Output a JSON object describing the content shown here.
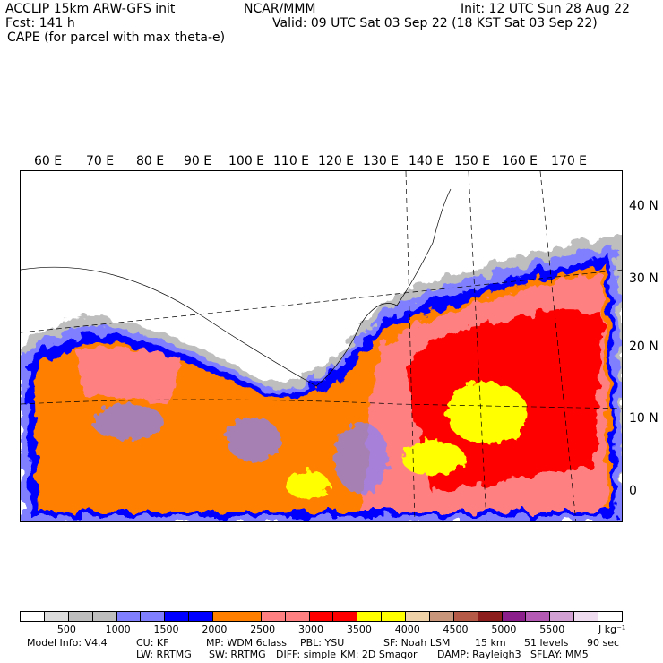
{
  "header": {
    "model": "ACCLIP 15km ARW-GFS init",
    "org": "NCAR/MMM",
    "init": "Init: 12 UTC Sun 28 Aug 22",
    "fcst": "Fcst:  141 h",
    "valid": "Valid: 09 UTC Sat 03 Sep 22 (18 KST Sat 03 Sep 22)",
    "field": "CAPE (for parcel with max theta-e)"
  },
  "map": {
    "lon_labels": [
      "60 E",
      "70 E",
      "80 E",
      "90 E",
      "100 E",
      "110 E",
      "120 E",
      "130 E",
      "140 E",
      "150 E",
      "160 E",
      "170 E"
    ],
    "lat_labels": [
      "40 N",
      "30 N",
      "20 N",
      "10 N",
      "0"
    ]
  },
  "colorbar": {
    "colors": [
      "#ffffff",
      "#dcdcdc",
      "#bebebe",
      "#bebebe",
      "#8080ff",
      "#8080ff",
      "#0000ff",
      "#0000ff",
      "#ff8000",
      "#ff8000",
      "#ff8080",
      "#ff8080",
      "#ff0000",
      "#ff0000",
      "#ffff00",
      "#ffff00",
      "#f0d2a8",
      "#c8967a",
      "#b45a46",
      "#8c1e1e",
      "#8c1e8c",
      "#b45ab4",
      "#d2a0d2",
      "#f0dcf0",
      "#ffffff"
    ],
    "labels": [
      "500",
      "1000",
      "1500",
      "2000",
      "2500",
      "3000",
      "3500",
      "4000",
      "4500",
      "5000",
      "5500"
    ],
    "units": "J kg⁻¹"
  },
  "footer": {
    "model_info": "Model Info: V4.4",
    "cu": "CU: KF",
    "mp": "MP: WDM 6class",
    "pbl": "PBL: YSU",
    "sf": "SF: Noah LSM",
    "res": "15 km",
    "levels": "51 levels",
    "dt": "90 sec",
    "lw": "LW: RRTMG",
    "sw": "SW: RRTMG",
    "diff": "DIFF: simple",
    "km": "KM: 2D Smagor",
    "damp": "DAMP: Rayleigh3",
    "sflay": "SFLAY: MM5"
  }
}
